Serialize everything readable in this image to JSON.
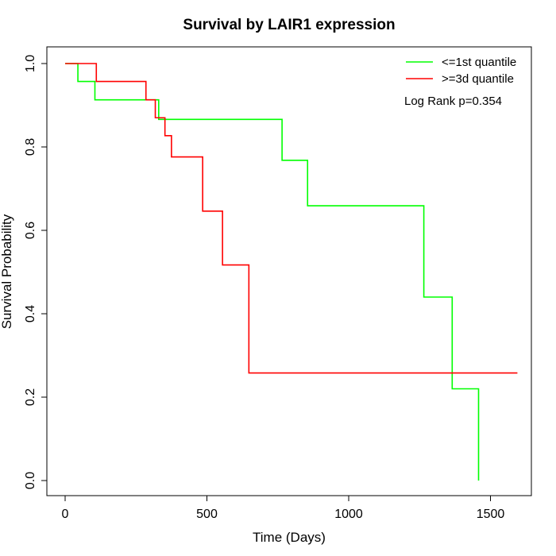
{
  "chart_data": {
    "type": "line",
    "title": "Survival by LAIR1 expression",
    "xlabel": "Time (Days)",
    "ylabel": "Survival Probability",
    "xlim": [
      0,
      1590
    ],
    "ylim": [
      0,
      1.0
    ],
    "xticks": [
      0,
      500,
      1000,
      1500
    ],
    "yticks": [
      0.0,
      0.2,
      0.4,
      0.6,
      0.8,
      1.0
    ],
    "xtick_labels": [
      "0",
      "500",
      "1000",
      "1500"
    ],
    "ytick_labels": [
      "0.0",
      "0.2",
      "0.4",
      "0.6",
      "0.8",
      "1.0"
    ],
    "step": true,
    "legend_position": "top-right",
    "annotation": "Log Rank p=0.354",
    "series": [
      {
        "name": "<=1st quantile",
        "color": "#00FF00",
        "x": [
          0,
          45,
          105,
          330,
          765,
          855,
          1265,
          1365,
          1458,
          1458
        ],
        "y": [
          1.0,
          0.957,
          0.913,
          0.866,
          0.768,
          0.659,
          0.44,
          0.22,
          0.22,
          0.0
        ]
      },
      {
        "name": ">=3d quantile",
        "color": "#FF0000",
        "x": [
          0,
          110,
          285,
          318,
          352,
          375,
          485,
          555,
          648,
          1595
        ],
        "y": [
          1.0,
          0.957,
          0.913,
          0.87,
          0.827,
          0.776,
          0.646,
          0.517,
          0.258,
          0.258
        ]
      }
    ]
  }
}
